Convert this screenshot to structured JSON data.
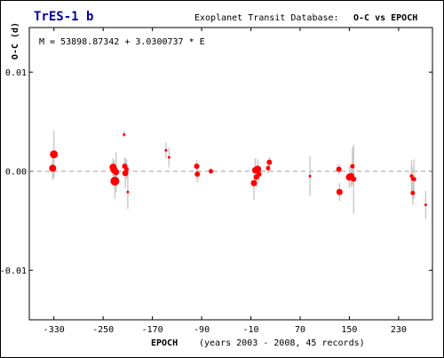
{
  "chart_data": {
    "type": "scatter",
    "title": "TrES-1 b",
    "subtitle": "Exoplanet Transit Database:",
    "plot_kind": "O-C vs EPOCH",
    "ephemeris": "M = 53898.87342 + 3.0300737 * E",
    "xlabel": "EPOCH",
    "xlabel_note": "(years 2003 - 2008, 45 records)",
    "ylabel": "O-C (d)",
    "xlim": [
      -370,
      285
    ],
    "ylim": [
      -0.015,
      0.0145
    ],
    "x_ticks": [
      -330,
      -250,
      -170,
      -90,
      -10,
      70,
      150,
      230
    ],
    "y_ticks": [
      0.01,
      0.0,
      -0.01
    ],
    "y_tick_labels": [
      "0.01",
      "0.00",
      "-0.01"
    ],
    "zero_line": true,
    "colors": {
      "points": "#ff0000",
      "errorbars": "#c8c8c8",
      "title": "#0000a0",
      "zero_line": "#a0a0a0"
    },
    "points": [
      {
        "x": -332,
        "y": 0.0003,
        "size": 8,
        "err": 0.0012
      },
      {
        "x": -330,
        "y": 0.0017,
        "size": 9,
        "err": 0.0024
      },
      {
        "x": -234,
        "y": 0.0004,
        "size": 8,
        "err": 0.0009
      },
      {
        "x": -232,
        "y": 0.0001,
        "size": 8,
        "err": 0.001
      },
      {
        "x": -231,
        "y": -0.001,
        "size": 10,
        "err": 0.0018
      },
      {
        "x": -229,
        "y": -0.0001,
        "size": 7,
        "err": 0.002
      },
      {
        "x": -216,
        "y": 0.0037,
        "size": 3,
        "err": 0.0003
      },
      {
        "x": -215,
        "y": 0.0005,
        "size": 6,
        "err": 0.0009
      },
      {
        "x": -214,
        "y": -0.0002,
        "size": 7,
        "err": 0.0015
      },
      {
        "x": -212,
        "y": 0.0002,
        "size": 5,
        "err": 0.001
      },
      {
        "x": -210,
        "y": -0.0021,
        "size": 3,
        "err": 0.0017
      },
      {
        "x": -148,
        "y": 0.0021,
        "size": 3,
        "err": 0.0008
      },
      {
        "x": -143,
        "y": 0.0014,
        "size": 3,
        "err": 0.001
      },
      {
        "x": -98,
        "y": 0.0005,
        "size": 6,
        "err": 0.0006
      },
      {
        "x": -97,
        "y": -0.0003,
        "size": 6,
        "err": 0.0008
      },
      {
        "x": -75,
        "y": 0.0,
        "size": 5,
        "err": 0.0003
      },
      {
        "x": -5,
        "y": -0.0012,
        "size": 7,
        "err": 0.0017
      },
      {
        "x": -3,
        "y": 0.0001,
        "size": 7,
        "err": 0.0012
      },
      {
        "x": -1,
        "y": -0.0006,
        "size": 6,
        "err": 0.001
      },
      {
        "x": 1,
        "y": 0.0002,
        "size": 8,
        "err": 0.001
      },
      {
        "x": 3,
        "y": -0.0003,
        "size": 6,
        "err": 0.0008
      },
      {
        "x": 20,
        "y": 0.0009,
        "size": 6,
        "err": 0.0005
      },
      {
        "x": 18,
        "y": 0.0003,
        "size": 5,
        "err": 0.0005
      },
      {
        "x": 86,
        "y": -0.0005,
        "size": 3,
        "err": 0.002
      },
      {
        "x": 133,
        "y": 0.0002,
        "size": 6,
        "err": 0.0005
      },
      {
        "x": 134,
        "y": -0.0021,
        "size": 7,
        "err": 0.0009
      },
      {
        "x": 150,
        "y": -0.0006,
        "size": 8,
        "err": 0.0011
      },
      {
        "x": 153,
        "y": -0.0005,
        "size": 7,
        "err": 0.0011
      },
      {
        "x": 155,
        "y": 0.0005,
        "size": 5,
        "err": 0.0019
      },
      {
        "x": 157,
        "y": -0.0008,
        "size": 6,
        "err": 0.0035
      },
      {
        "x": 251,
        "y": -0.0005,
        "size": 4,
        "err": 0.0016
      },
      {
        "x": 252,
        "y": -0.0008,
        "size": 3,
        "err": 0.0013
      },
      {
        "x": 253,
        "y": -0.0022,
        "size": 5,
        "err": 0.0012
      },
      {
        "x": 255,
        "y": -0.0008,
        "size": 5,
        "err": 0.002
      },
      {
        "x": 274,
        "y": -0.0034,
        "size": 3,
        "err": 0.0014
      }
    ]
  }
}
